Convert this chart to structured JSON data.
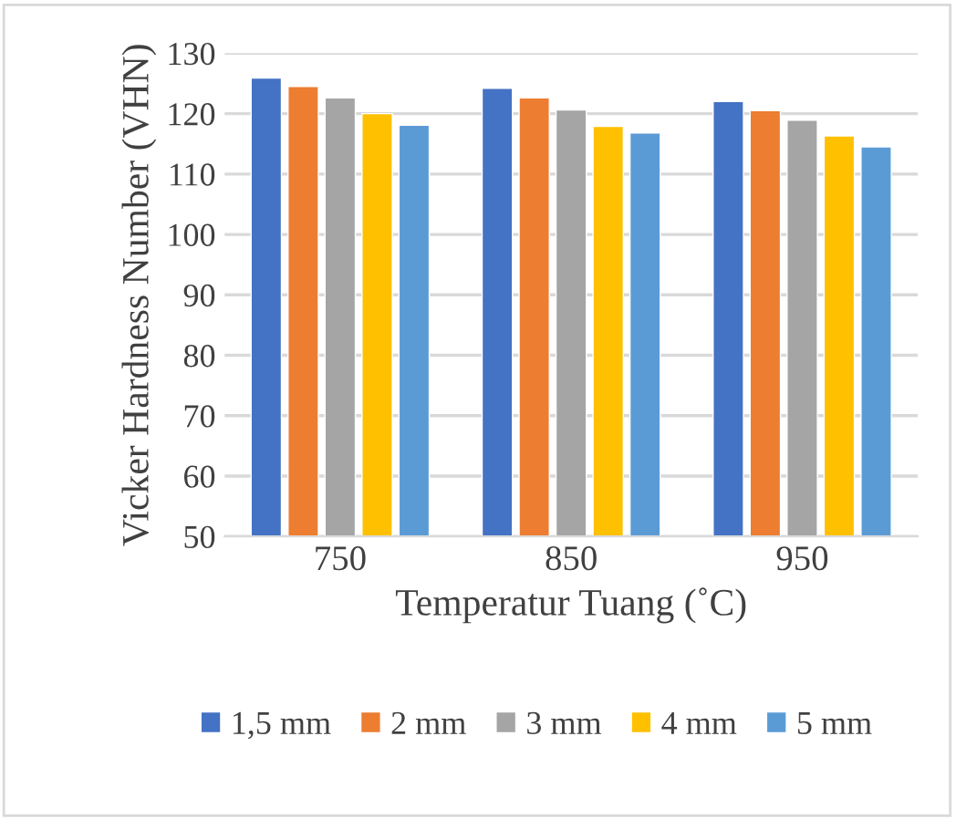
{
  "chart_data": {
    "type": "bar",
    "xlabel": "Temperatur Tuang (˚C)",
    "ylabel": "Vicker Hardness Number (VHN)",
    "categories": [
      "750",
      "850",
      "950"
    ],
    "series": [
      {
        "name": "1,5 mm",
        "color": "#4472c4",
        "values": [
          125.9,
          124.2,
          122.0
        ]
      },
      {
        "name": "2 mm",
        "color": "#ed7d31",
        "values": [
          124.5,
          122.6,
          120.5
        ]
      },
      {
        "name": "3 mm",
        "color": "#a5a5a5",
        "values": [
          122.6,
          120.6,
          118.9
        ]
      },
      {
        "name": "4 mm",
        "color": "#ffc000",
        "values": [
          120.0,
          117.9,
          116.3
        ]
      },
      {
        "name": "5 mm",
        "color": "#5b9bd5",
        "values": [
          118.1,
          116.8,
          114.5
        ]
      }
    ],
    "ylim": [
      50,
      130
    ],
    "yticks": [
      50,
      60,
      70,
      80,
      90,
      100,
      110,
      120,
      130
    ],
    "grid": "y",
    "legend": "bottom"
  }
}
